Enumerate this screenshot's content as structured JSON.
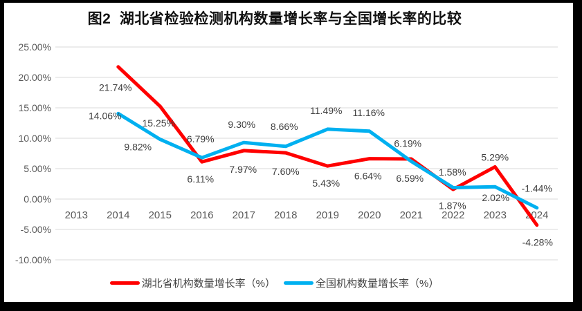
{
  "title": "图2  湖北省检验检测机构数量增长率与全国增长率的比较",
  "colors": {
    "frame_border": "#000000",
    "background": "#ffffff",
    "gridline": "#d9d9d9",
    "axis_text": "#595959",
    "data_label_text": "#404040",
    "series_hubei": "#ff0000",
    "series_national": "#00b0f0"
  },
  "chart_data": {
    "type": "line",
    "title": "图2  湖北省检验检测机构数量增长率与全国增长率的比较",
    "categories": [
      "2013",
      "2014",
      "2015",
      "2016",
      "2017",
      "2018",
      "2019",
      "2020",
      "2021",
      "2022",
      "2023",
      "2024"
    ],
    "xlabel": "",
    "ylabel": "",
    "ylim": [
      -10,
      25
    ],
    "grid": true,
    "legend_position": "bottom",
    "y_axis": {
      "tick_labels": [
        "25.00%",
        "20.00%",
        "15.00%",
        "10.00%",
        "5.00%",
        "0.00%",
        "-5.00%",
        "-10.00%"
      ],
      "tick_values": [
        25,
        20,
        15,
        10,
        5,
        0,
        -5,
        -10
      ]
    },
    "series": [
      {
        "name": "湖北省机构数量增长率（%）",
        "color": "#ff0000",
        "values": [
          null,
          21.74,
          15.25,
          6.11,
          7.97,
          7.6,
          5.43,
          6.64,
          6.59,
          1.58,
          5.29,
          -4.28
        ],
        "labels": [
          "",
          "21.74%",
          "15.25%",
          "6.11%",
          "7.97%",
          "7.60%",
          "5.43%",
          "6.64%",
          "6.59%",
          "1.58%",
          "5.29%",
          "-4.28%"
        ],
        "label_offsets": [
          null,
          [
            -4,
            30
          ],
          [
            -2,
            24
          ],
          [
            -2,
            25
          ],
          [
            -1,
            27
          ],
          [
            0,
            27
          ],
          [
            -2,
            25
          ],
          [
            -2,
            25
          ],
          [
            -2,
            28
          ],
          [
            -1,
            -25
          ],
          [
            0,
            -14
          ],
          [
            1,
            25
          ]
        ]
      },
      {
        "name": "全国机构数量增长率（%）",
        "color": "#00b0f0",
        "values": [
          null,
          14.06,
          9.82,
          6.79,
          9.3,
          8.66,
          11.49,
          11.16,
          6.19,
          1.87,
          2.02,
          -1.44
        ],
        "labels": [
          "",
          "14.06%",
          "9.82%",
          "6.79%",
          "9.30%",
          "8.66%",
          "11.49%",
          "11.16%",
          "6.19%",
          "1.87%",
          "2.02%",
          "-1.44%"
        ],
        "label_offsets": [
          null,
          [
            -19,
            3
          ],
          [
            -32,
            11
          ],
          [
            -2,
            -27
          ],
          [
            -3,
            -26
          ],
          [
            -2,
            -29
          ],
          [
            -2,
            -27
          ],
          [
            -1,
            -27
          ],
          [
            -5,
            -26
          ],
          [
            -1,
            26
          ],
          [
            1,
            16
          ],
          [
            0,
            -28
          ]
        ]
      }
    ]
  }
}
